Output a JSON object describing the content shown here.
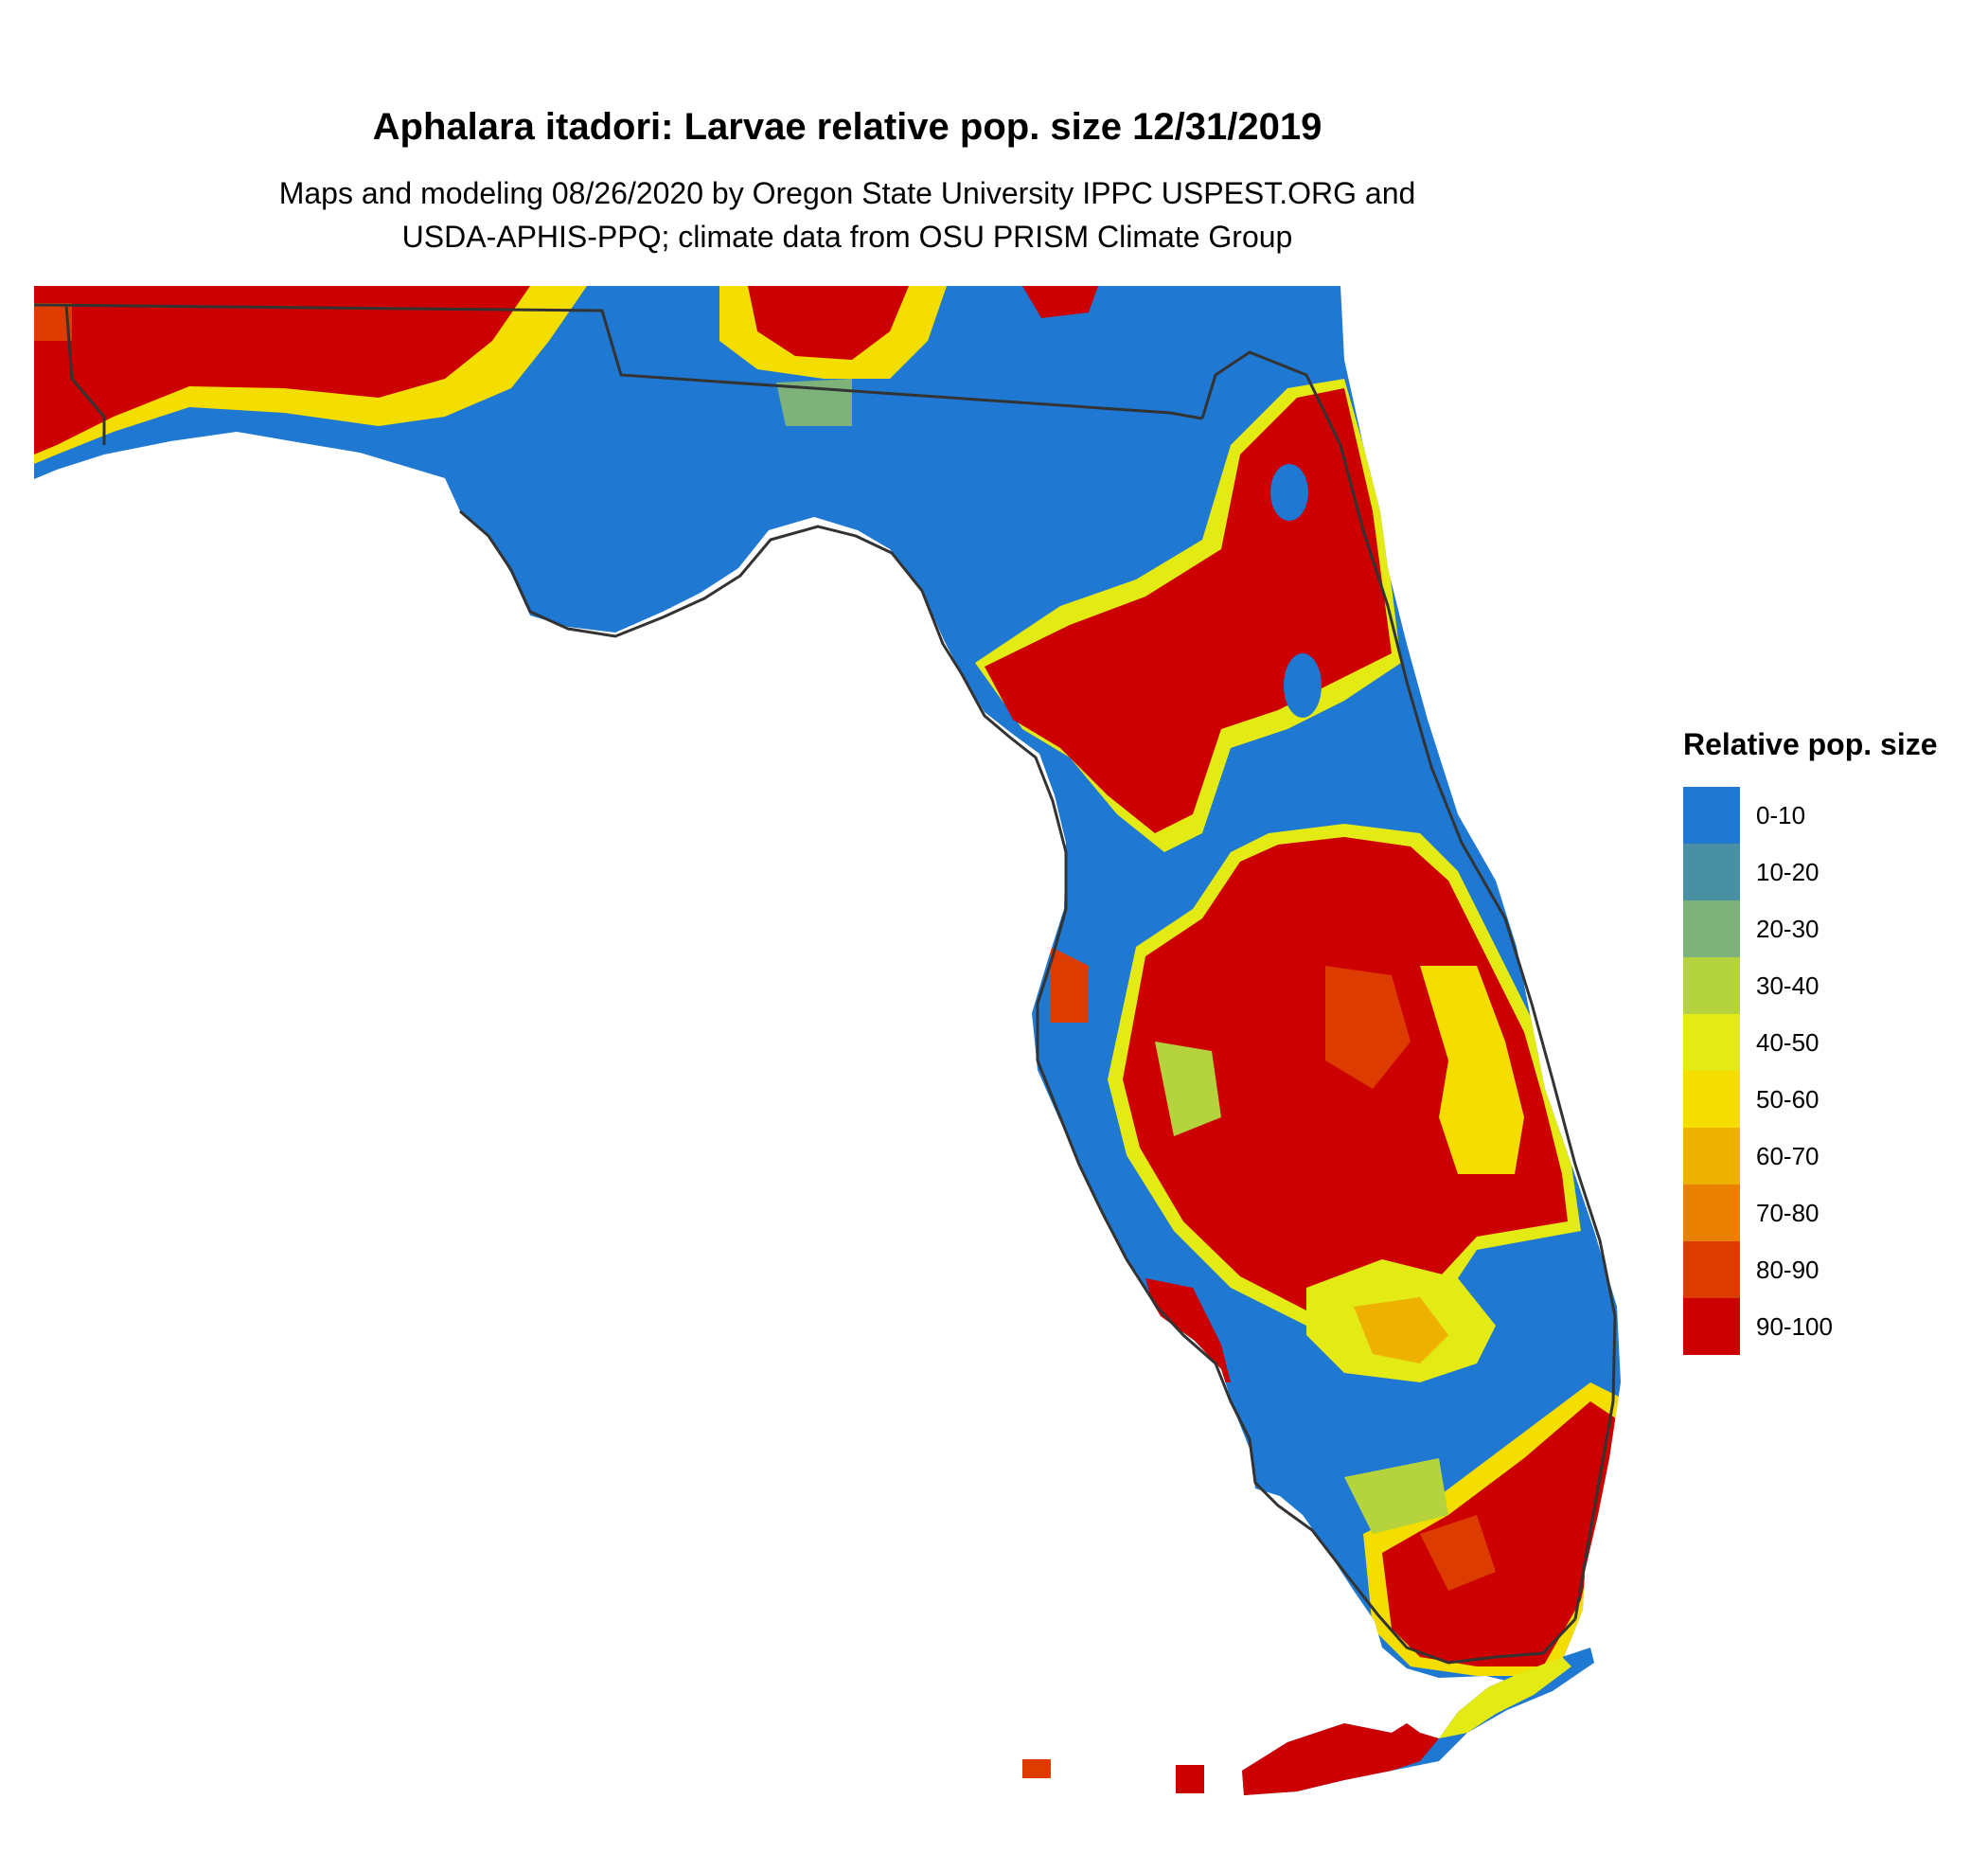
{
  "title": "Aphalara itadori: Larvae relative pop. size 12/31/2019",
  "subtitle_line1": "Maps and modeling 08/26/2020 by Oregon State University IPPC USPEST.ORG and",
  "subtitle_line2": "USDA-APHIS-PPQ; climate data from OSU PRISM Climate Group",
  "legend": {
    "title": "Relative pop. size",
    "items": [
      {
        "label": "0-10",
        "color": "#1f78d1"
      },
      {
        "label": "10-20",
        "color": "#4a90a4"
      },
      {
        "label": "20-30",
        "color": "#7fb27a"
      },
      {
        "label": "30-40",
        "color": "#b5d33d"
      },
      {
        "label": "40-50",
        "color": "#e3ea14"
      },
      {
        "label": "50-60",
        "color": "#f4de00"
      },
      {
        "label": "60-70",
        "color": "#efb100"
      },
      {
        "label": "70-80",
        "color": "#eb7f00"
      },
      {
        "label": "80-90",
        "color": "#dd3c00"
      },
      {
        "label": "90-100",
        "color": "#cc0000"
      }
    ]
  },
  "map": {
    "region": "Florida",
    "land_fill": "#1f78d1",
    "border_color": "#333333"
  }
}
